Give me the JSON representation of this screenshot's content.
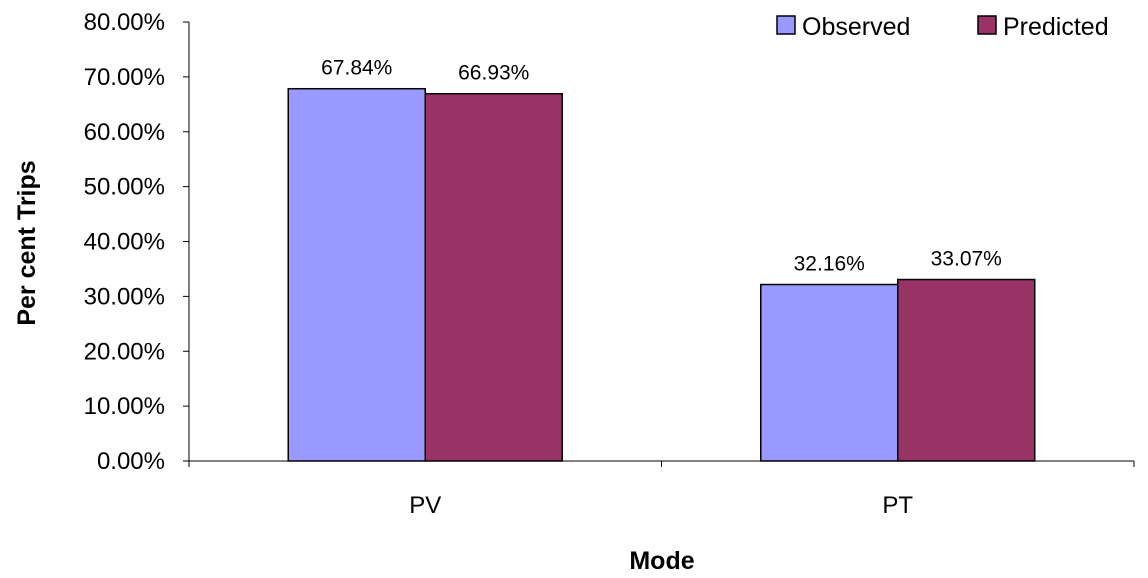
{
  "chart_data": {
    "type": "bar",
    "title": "",
    "xlabel": "Mode",
    "ylabel": "Per cent Trips",
    "categories": [
      "PV",
      "PT"
    ],
    "series": [
      {
        "name": "Observed",
        "values": [
          67.84,
          32.16
        ],
        "labels": [
          "67.84%",
          "32.16%"
        ],
        "color": "#9999FF"
      },
      {
        "name": "Predicted",
        "values": [
          66.93,
          33.07
        ],
        "labels": [
          "66.93%",
          "33.07%"
        ],
        "color": "#993366"
      }
    ],
    "ylim": [
      0,
      80
    ],
    "yticks": [
      0,
      10,
      20,
      30,
      40,
      50,
      60,
      70,
      80
    ],
    "ytick_labels": [
      "0.00%",
      "10.00%",
      "20.00%",
      "30.00%",
      "40.00%",
      "50.00%",
      "60.00%",
      "70.00%",
      "80.00%"
    ],
    "grid": false,
    "legend_position": "top-right"
  }
}
